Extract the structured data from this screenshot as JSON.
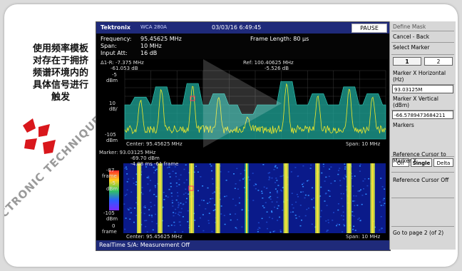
{
  "caption": [
    "使用频率模板",
    "对存在于拥挤",
    "频谱环境内的",
    "具体信号进行",
    "触发"
  ],
  "watermark": "CTRONIC TECHNIQUE",
  "topbar": {
    "brand": "Tektronix",
    "model": "WCA 280A",
    "datetime": "03/03/16 6:49:45",
    "pause_label": "PAUSE"
  },
  "info": {
    "frequency_label": "Frequency:",
    "frequency": "95.45625 MHz",
    "span_label": "Span:",
    "span": "10 MHz",
    "input_att_label": "Input Att:",
    "input_att": "16 dB",
    "frame_length": "Frame Length: 80 µs"
  },
  "spectrum": {
    "delta_readout": "Δ1-R: -7.375 MHz",
    "delta_level": "-61.053 dB",
    "ref_readout": "Ref: 100.40625 MHz",
    "ref_level": "-5.526 dB",
    "y_top": "-5",
    "y_unit": "dBm",
    "y_mid": "10",
    "y_mid_unit": "dB/",
    "y_bottom": "-105",
    "y_bottom_unit": "dBm",
    "center": "Center: 95.45625 MHz",
    "span": "Span: 10 MHz"
  },
  "spectrogram": {
    "marker": "Marker: 93.03125 MHz",
    "marker_level": "-69.70 dBm",
    "marker_time": "-4.88 ms  -61 frame",
    "y_top": "-87",
    "y_top_unit": "frame",
    "y_top2": "-5",
    "y_top2_unit": "dBm",
    "y_bot": "-105",
    "y_bot_unit": "dBm",
    "y_bot2": "0",
    "y_bot2_unit": "frame",
    "center": "Center: 95.45625 MHz",
    "span": "Span: 10 MHz"
  },
  "status": "RealTime S/A: Measurement Off",
  "panel": {
    "define_mask": "Define Mask",
    "cancel_back": "Cancel - Back",
    "select_marker": "Select Marker",
    "marker_1": "1",
    "marker_2": "2",
    "marker_x_horiz": "Marker X Horizontal (Hz)",
    "marker_x_horiz_value": "93.03125M",
    "marker_x_vert": "Marker X Vertical (dBm)",
    "marker_x_vert_value": "-66.5789473684211",
    "markers": "Markers",
    "markers_off": "Off",
    "markers_single": "Single",
    "markers_delta": "Delta",
    "ref_to_marker": "Reference Cursor to Marker X",
    "ref_off": "Reference Cursor Off",
    "page2": "Go to page 2 (of 2)"
  },
  "colors": {
    "title_bar": "#1f2a7a",
    "mask": "#1fa79a",
    "trace": "#f2ea2a",
    "marker": "#ff3366"
  }
}
